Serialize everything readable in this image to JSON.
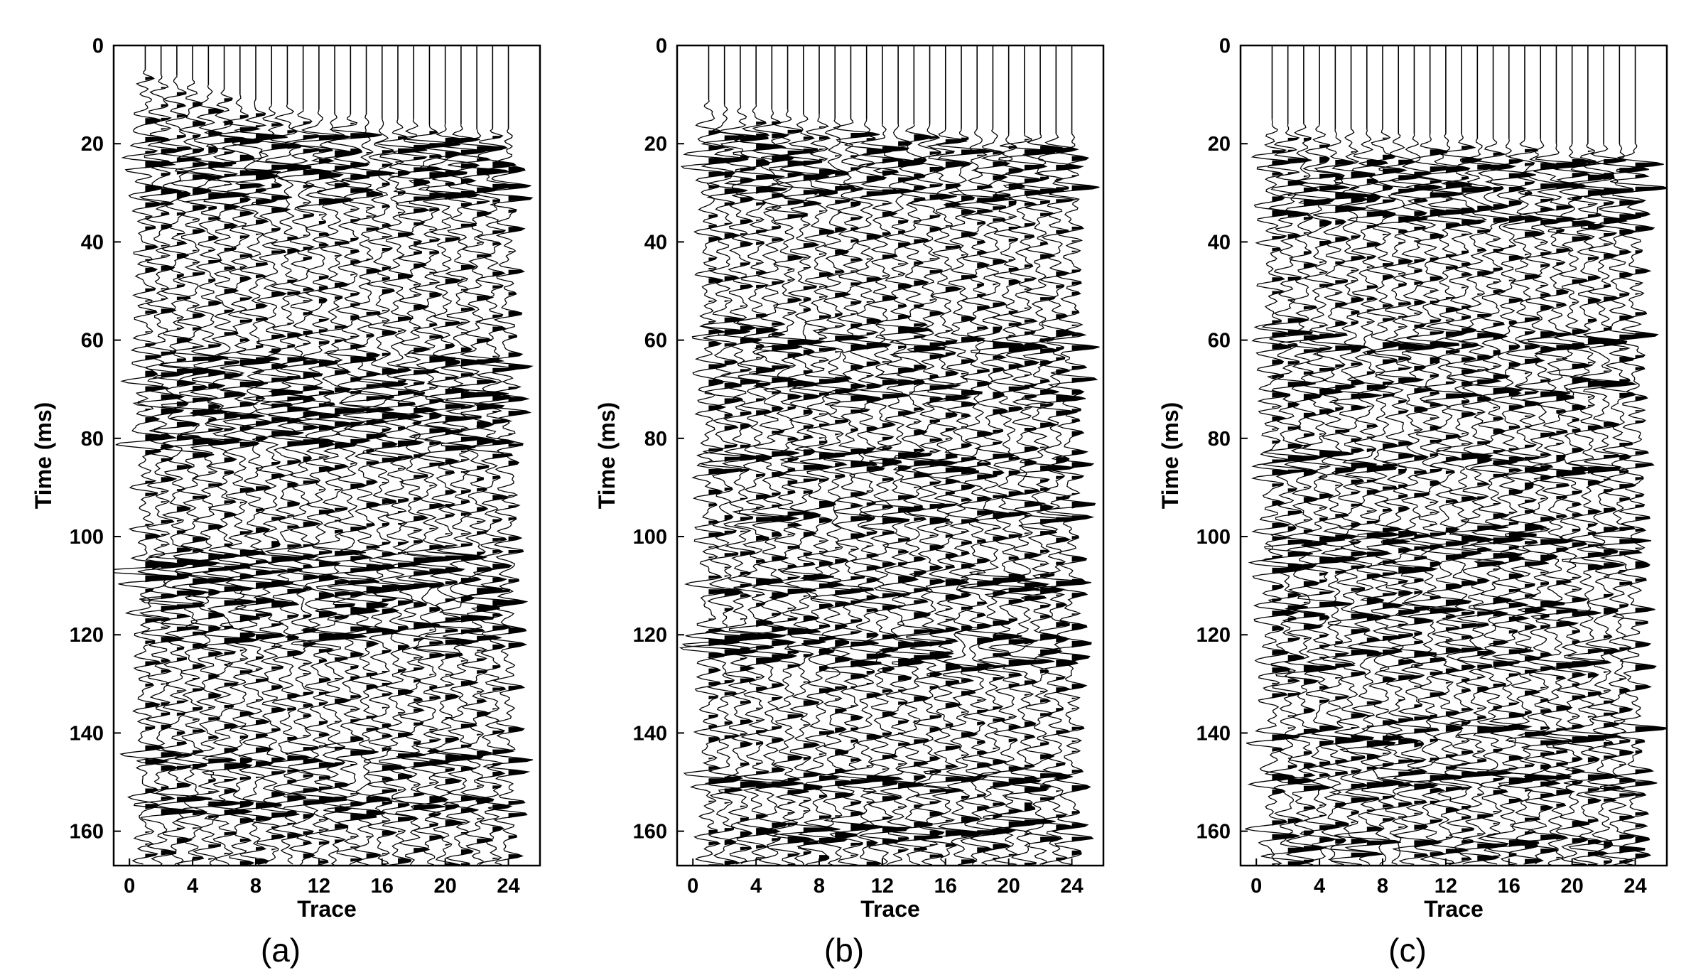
{
  "chart_data": [
    {
      "type": "seismic-wiggle",
      "panel_label": "(a)",
      "xlabel": "Trace",
      "ylabel": "Time (ms)",
      "xlim": [
        -1,
        26
      ],
      "ylim": [
        0,
        167
      ],
      "xticks": [
        0,
        4,
        8,
        12,
        16,
        20,
        24
      ],
      "yticks": [
        0,
        20,
        40,
        60,
        80,
        100,
        120,
        140,
        160
      ],
      "traces": [
        1,
        2,
        3,
        4,
        5,
        6,
        7,
        8,
        9,
        10,
        11,
        12,
        13,
        14,
        15,
        16,
        17,
        18,
        19,
        20,
        21,
        22,
        23,
        24
      ],
      "first_arrival_ms": [
        5,
        6,
        6,
        7,
        8,
        9,
        10,
        11,
        12,
        12,
        13,
        13,
        14,
        14,
        14,
        15,
        15,
        15,
        16,
        16,
        16,
        17,
        17,
        17
      ],
      "strong_event_times_ms": [
        20,
        25,
        30,
        65,
        70,
        75,
        80,
        105,
        110,
        115,
        120,
        145,
        155
      ]
    },
    {
      "type": "seismic-wiggle",
      "panel_label": "(b)",
      "xlabel": "Trace",
      "ylabel": "Time (ms)",
      "xlim": [
        -1,
        26
      ],
      "ylim": [
        0,
        167
      ],
      "xticks": [
        0,
        4,
        8,
        12,
        16,
        20,
        24
      ],
      "yticks": [
        0,
        20,
        40,
        60,
        80,
        100,
        120,
        140,
        160
      ],
      "traces": [
        1,
        2,
        3,
        4,
        5,
        6,
        7,
        8,
        9,
        10,
        11,
        12,
        13,
        14,
        15,
        16,
        17,
        18,
        19,
        20,
        21,
        22,
        23,
        24
      ],
      "first_arrival_ms": [
        11,
        12,
        12,
        12,
        13,
        13,
        14,
        14,
        15,
        15,
        15,
        16,
        16,
        16,
        16,
        17,
        17,
        17,
        17,
        18,
        18,
        18,
        18,
        18
      ],
      "strong_event_times_ms": [
        20,
        25,
        30,
        60,
        70,
        85,
        95,
        110,
        120,
        125,
        150,
        160
      ]
    },
    {
      "type": "seismic-wiggle",
      "panel_label": "(c)",
      "xlabel": "Trace",
      "ylabel": "Time (ms)",
      "xlim": [
        -1,
        26
      ],
      "ylim": [
        0,
        167
      ],
      "xticks": [
        0,
        4,
        8,
        12,
        16,
        20,
        24
      ],
      "yticks": [
        0,
        20,
        40,
        60,
        80,
        100,
        120,
        140,
        160
      ],
      "traces": [
        1,
        2,
        3,
        4,
        5,
        6,
        7,
        8,
        9,
        10,
        11,
        12,
        13,
        14,
        15,
        16,
        17,
        18,
        19,
        20,
        21,
        22,
        23,
        24
      ],
      "first_arrival_ms": [
        15,
        16,
        16,
        16,
        17,
        17,
        17,
        17,
        18,
        18,
        18,
        18,
        18,
        19,
        19,
        19,
        19,
        19,
        20,
        20,
        20,
        20,
        20,
        20
      ],
      "strong_event_times_ms": [
        25,
        30,
        35,
        60,
        70,
        85,
        100,
        105,
        115,
        125,
        140,
        150,
        163
      ]
    }
  ]
}
